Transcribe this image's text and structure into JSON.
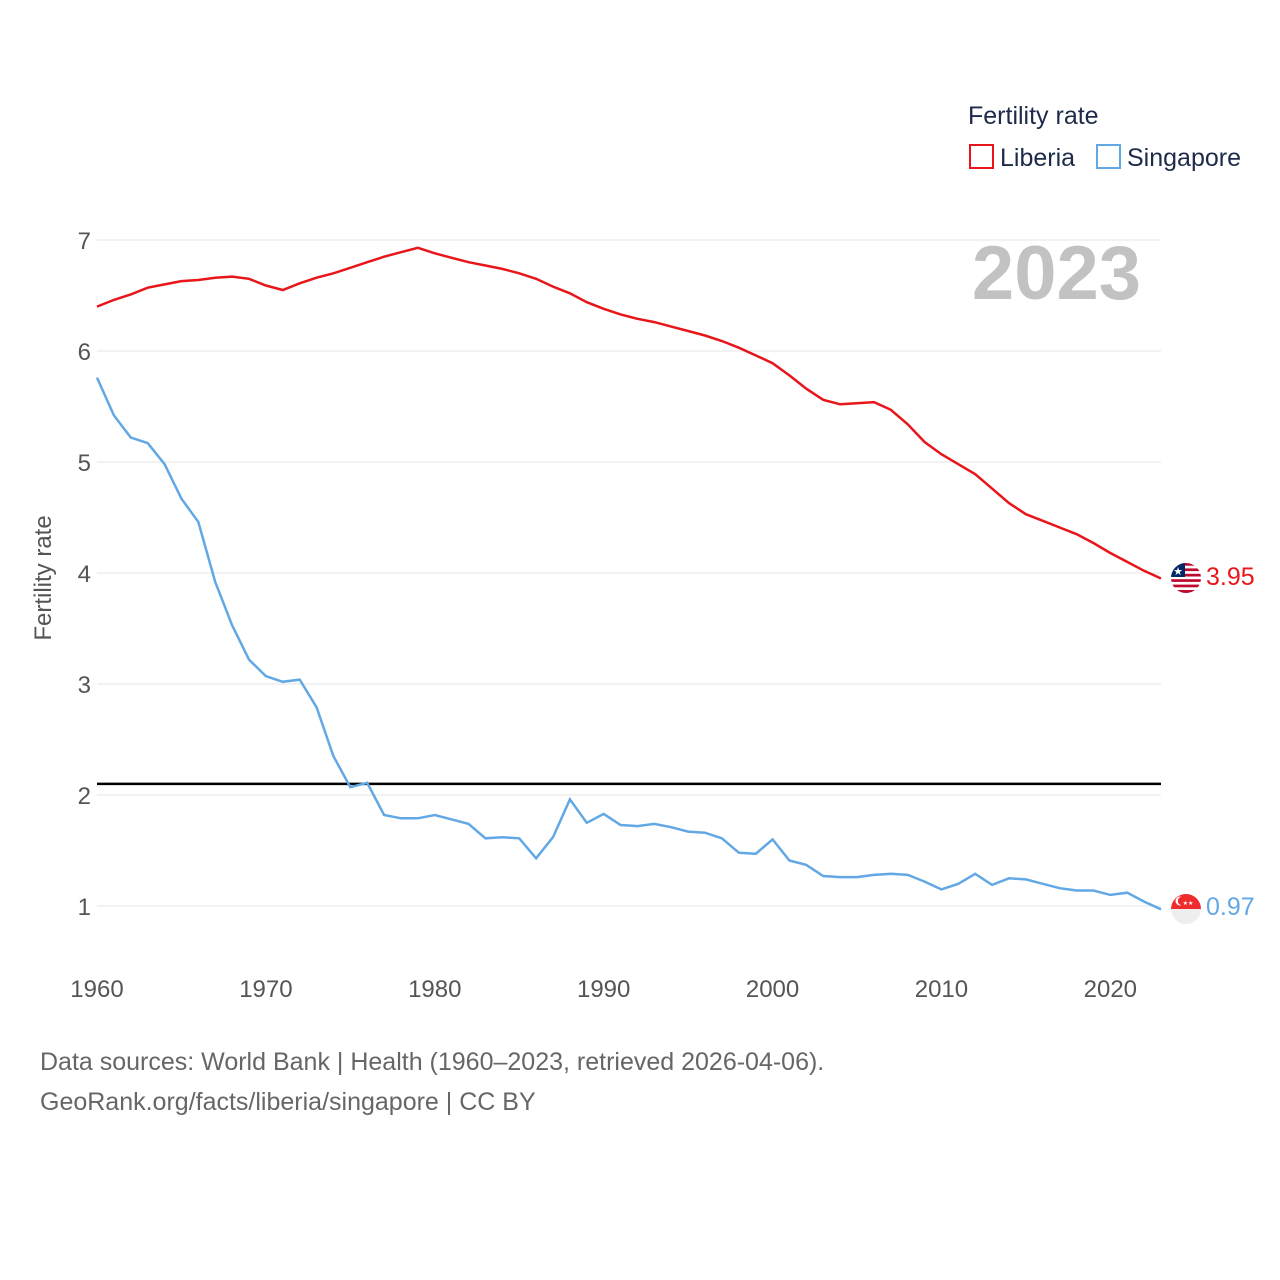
{
  "chart_data": {
    "type": "line",
    "ylabel": "Fertility rate",
    "xlim": [
      1960,
      2023
    ],
    "ylim": [
      0.5,
      7.3
    ],
    "x_ticks": [
      1960,
      1970,
      1980,
      1990,
      2000,
      2010,
      2020
    ],
    "y_ticks": [
      1,
      2,
      3,
      4,
      5,
      6,
      7
    ],
    "year_label": "2023",
    "legend": {
      "title": "Fertility rate",
      "placement": "top-right"
    },
    "reference_line": {
      "y": 2.1,
      "color": "#000000"
    },
    "x": [
      1960,
      1961,
      1962,
      1963,
      1964,
      1965,
      1966,
      1967,
      1968,
      1969,
      1970,
      1971,
      1972,
      1973,
      1974,
      1975,
      1976,
      1977,
      1978,
      1979,
      1980,
      1981,
      1982,
      1983,
      1984,
      1985,
      1986,
      1987,
      1988,
      1989,
      1990,
      1991,
      1992,
      1993,
      1994,
      1995,
      1996,
      1997,
      1998,
      1999,
      2000,
      2001,
      2002,
      2003,
      2004,
      2005,
      2006,
      2007,
      2008,
      2009,
      2010,
      2011,
      2012,
      2013,
      2014,
      2015,
      2016,
      2017,
      2018,
      2019,
      2020,
      2021,
      2022,
      2023
    ],
    "series": [
      {
        "name": "Liberia",
        "color": "#e8161b",
        "end_label": "3.95",
        "values": [
          6.4,
          6.46,
          6.51,
          6.57,
          6.6,
          6.63,
          6.64,
          6.66,
          6.67,
          6.65,
          6.59,
          6.55,
          6.61,
          6.66,
          6.7,
          6.75,
          6.8,
          6.85,
          6.89,
          6.93,
          6.88,
          6.84,
          6.8,
          6.77,
          6.74,
          6.7,
          6.65,
          6.58,
          6.52,
          6.44,
          6.38,
          6.33,
          6.29,
          6.26,
          6.22,
          6.18,
          6.14,
          6.09,
          6.03,
          5.96,
          5.89,
          5.78,
          5.66,
          5.56,
          5.52,
          5.53,
          5.54,
          5.47,
          5.34,
          5.18,
          5.07,
          4.98,
          4.89,
          4.76,
          4.63,
          4.53,
          4.47,
          4.41,
          4.35,
          4.27,
          4.18,
          4.1,
          4.02,
          3.95
        ]
      },
      {
        "name": "Singapore",
        "color": "#62a8e5",
        "end_label": "0.97",
        "values": [
          5.76,
          5.42,
          5.22,
          5.17,
          4.98,
          4.67,
          4.46,
          3.92,
          3.53,
          3.22,
          3.07,
          3.02,
          3.04,
          2.79,
          2.35,
          2.07,
          2.11,
          1.82,
          1.79,
          1.79,
          1.82,
          1.78,
          1.74,
          1.61,
          1.62,
          1.61,
          1.43,
          1.62,
          1.96,
          1.75,
          1.83,
          1.73,
          1.72,
          1.74,
          1.71,
          1.67,
          1.66,
          1.61,
          1.48,
          1.47,
          1.6,
          1.41,
          1.37,
          1.27,
          1.26,
          1.26,
          1.28,
          1.29,
          1.28,
          1.22,
          1.15,
          1.2,
          1.29,
          1.19,
          1.25,
          1.24,
          1.2,
          1.16,
          1.14,
          1.14,
          1.1,
          1.12,
          1.04,
          0.97
        ]
      }
    ]
  },
  "footer": {
    "source_line": "Data sources: World Bank | Health (1960–2023, retrieved 2026-04-06).",
    "credit_line": "GeoRank.org/facts/liberia/singapore | CC BY"
  },
  "icons": {
    "liberia_flag": "liberia-flag-icon",
    "singapore_flag": "singapore-flag-icon"
  }
}
